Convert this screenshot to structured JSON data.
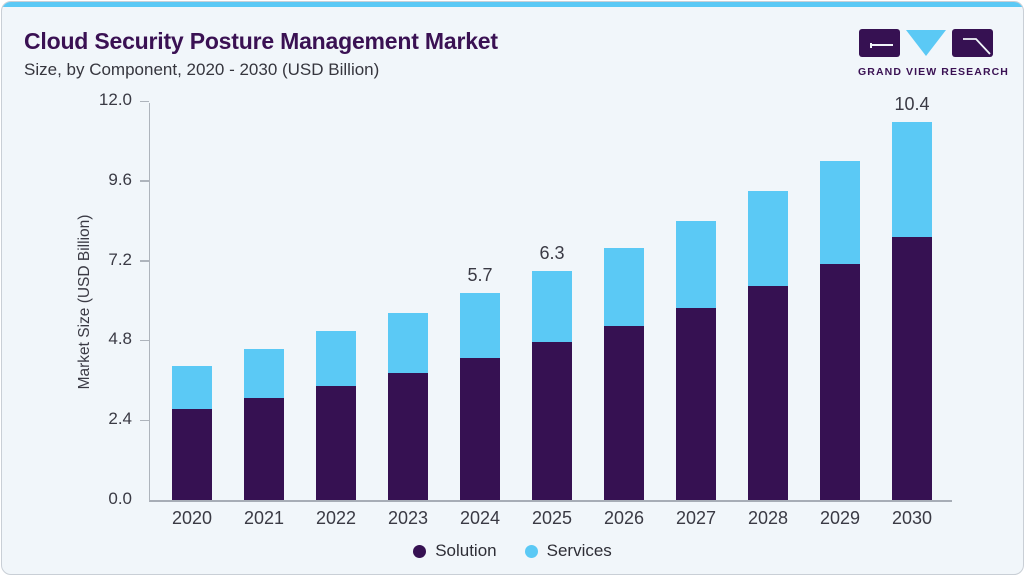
{
  "header": {
    "title": "Cloud Security Posture Management Market",
    "subtitle": "Size, by Component, 2020 - 2030 (USD Billion)",
    "logo_text": "GRAND VIEW RESEARCH"
  },
  "colors": {
    "solution": "#361152",
    "services": "#5BC9F5",
    "accent_bar": "#5BC9F5",
    "title_text": "#3A1153",
    "body_text": "#3A3A44",
    "axis_line": "#AEB4BC",
    "card_background": "#F1F6FA"
  },
  "chart_data": {
    "type": "bar",
    "stacked": true,
    "title": "Cloud Security Posture Management Market",
    "subtitle": "Size, by Component, 2020 - 2030 (USD Billion)",
    "xlabel": "",
    "ylabel": "Market Size (USD Billion)",
    "categories": [
      "2020",
      "2021",
      "2022",
      "2023",
      "2024",
      "2025",
      "2026",
      "2027",
      "2028",
      "2029",
      "2030"
    ],
    "series": [
      {
        "name": "Solution",
        "color": "#361152",
        "values": [
          2.5,
          2.8,
          3.15,
          3.5,
          3.9,
          4.35,
          4.8,
          5.3,
          5.9,
          6.5,
          7.25
        ]
      },
      {
        "name": "Services",
        "color": "#5BC9F5",
        "values": [
          1.2,
          1.35,
          1.5,
          1.65,
          1.8,
          1.95,
          2.15,
          2.4,
          2.6,
          2.85,
          3.15
        ]
      }
    ],
    "totals": [
      3.7,
      4.15,
      4.65,
      5.15,
      5.7,
      6.3,
      6.95,
      7.7,
      8.5,
      9.35,
      10.4
    ],
    "total_labels": {
      "2024": "5.7",
      "2025": "6.3",
      "2030": "10.4"
    },
    "y_ticks": [
      "0.0",
      "2.4",
      "4.8",
      "7.2",
      "9.6",
      "12.0"
    ],
    "ylim": [
      0,
      12.0
    ],
    "grid": false,
    "legend_position": "bottom"
  },
  "legend": {
    "items": [
      {
        "label": "Solution"
      },
      {
        "label": "Services"
      }
    ]
  }
}
